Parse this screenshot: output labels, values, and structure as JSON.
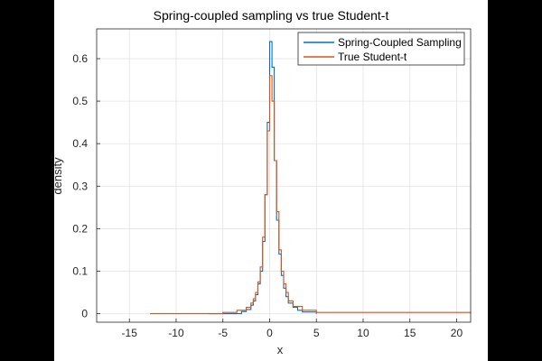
{
  "chart_data": {
    "type": "line",
    "title": "Spring-coupled sampling vs true Student-t",
    "xlabel": "x",
    "ylabel": "density",
    "xlim": [
      -18.5,
      21.5
    ],
    "ylim": [
      -0.02,
      0.67
    ],
    "x_ticks": [
      -15,
      -10,
      -5,
      0,
      5,
      10,
      15,
      20
    ],
    "y_ticks": [
      0,
      0.1,
      0.2,
      0.3,
      0.4,
      0.5,
      0.6
    ],
    "x_tick_labels": [
      "-15",
      "-10",
      "-5",
      "0",
      "5",
      "10",
      "15",
      "20"
    ],
    "y_tick_labels": [
      "0",
      "0.1",
      "0.2",
      "0.3",
      "0.4",
      "0.5",
      "0.6"
    ],
    "grid": true,
    "legend_position": "top-right",
    "series": [
      {
        "name": "Spring-Coupled Sampling",
        "color": "#0072BD",
        "x": [
          -6.5,
          -3.0,
          -2.5,
          -2.0,
          -1.75,
          -1.5,
          -1.25,
          -1.0,
          -0.75,
          -0.5,
          -0.25,
          0.0,
          0.25,
          0.5,
          0.75,
          1.0,
          1.25,
          1.5,
          1.75,
          2.0,
          2.5,
          3.0,
          3.5,
          5.0
        ],
        "y": [
          0.0,
          0.005,
          0.01,
          0.02,
          0.03,
          0.045,
          0.07,
          0.1,
          0.17,
          0.28,
          0.45,
          0.64,
          0.58,
          0.36,
          0.22,
          0.14,
          0.09,
          0.06,
          0.04,
          0.025,
          0.015,
          0.008,
          0.004,
          0.0
        ]
      },
      {
        "name": "True Student-t",
        "color": "#D95319",
        "x": [
          -12.8,
          -5.0,
          -3.5,
          -2.5,
          -2.0,
          -1.75,
          -1.5,
          -1.25,
          -1.0,
          -0.75,
          -0.5,
          -0.25,
          0.0,
          0.25,
          0.5,
          0.75,
          1.0,
          1.25,
          1.5,
          1.75,
          2.0,
          2.5,
          3.5,
          5.0,
          21.5
        ],
        "y": [
          0.0,
          0.003,
          0.008,
          0.015,
          0.025,
          0.035,
          0.05,
          0.075,
          0.11,
          0.18,
          0.28,
          0.43,
          0.56,
          0.5,
          0.36,
          0.24,
          0.15,
          0.1,
          0.07,
          0.05,
          0.03,
          0.017,
          0.008,
          0.003,
          0.0
        ]
      }
    ]
  },
  "legend": {
    "items": [
      {
        "label": "Spring-Coupled Sampling",
        "color": "#0072BD"
      },
      {
        "label": "True Student-t",
        "color": "#D95319"
      }
    ]
  }
}
